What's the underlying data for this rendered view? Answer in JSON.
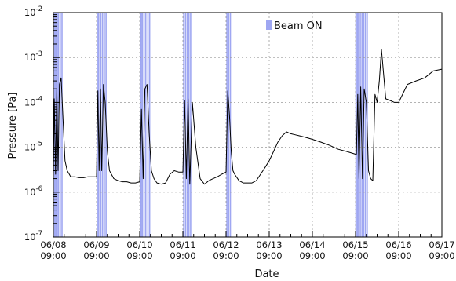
{
  "chart_data": {
    "type": "line",
    "title": "",
    "xlabel": "Date",
    "ylabel": "Pressure [Pa]",
    "y_scale": "log",
    "ylim": [
      1e-07,
      0.01
    ],
    "y_tick_labels": [
      {
        "mant": "10",
        "exp": "-7"
      },
      {
        "mant": "10",
        "exp": "-6"
      },
      {
        "mant": "10",
        "exp": "-5"
      },
      {
        "mant": "10",
        "exp": "-4"
      },
      {
        "mant": "10",
        "exp": "-3"
      },
      {
        "mant": "10",
        "exp": "-2"
      }
    ],
    "x_tick_labels": [
      [
        "06/08",
        "09:00"
      ],
      [
        "06/09",
        "09:00"
      ],
      [
        "06/10",
        "09:00"
      ],
      [
        "06/11",
        "09:00"
      ],
      [
        "06/12",
        "09:00"
      ],
      [
        "06/13",
        "09:00"
      ],
      [
        "06/14",
        "09:00"
      ],
      [
        "06/15",
        "09:00"
      ],
      [
        "06/16",
        "09:00"
      ],
      [
        "06/17",
        "09:00"
      ]
    ],
    "xlim_days": [
      0,
      9
    ],
    "grid": true,
    "legend": {
      "label": "Beam ON",
      "position": "top-center",
      "color": "#9fa7f2"
    },
    "line_color": "#000000",
    "series": [
      {
        "x_days": [
          0.0,
          0.02,
          0.05,
          0.08,
          0.11,
          0.14,
          0.18,
          0.22,
          0.27,
          0.32,
          0.37,
          0.4,
          0.5,
          0.6,
          0.7,
          0.8,
          0.9,
          1.0,
          1.03,
          1.06,
          1.09,
          1.12,
          1.16,
          1.2,
          1.25,
          1.3,
          1.4,
          1.5,
          1.6,
          1.7,
          1.8,
          1.9,
          2.0,
          2.04,
          2.08,
          2.12,
          2.17,
          2.22,
          2.27,
          2.33,
          2.4,
          2.5,
          2.6,
          2.7,
          2.8,
          2.9,
          3.0,
          3.04,
          3.08,
          3.12,
          3.16,
          3.22,
          3.3,
          3.4,
          3.5,
          3.6,
          3.7,
          3.8,
          3.9,
          4.0,
          4.04,
          4.08,
          4.12,
          4.16,
          4.2,
          4.3,
          4.4,
          4.5,
          4.6,
          4.7,
          4.8,
          4.9,
          5.0,
          5.1,
          5.2,
          5.3,
          5.4,
          5.5,
          5.6,
          5.7,
          5.8,
          5.9,
          6.0,
          6.2,
          6.4,
          6.6,
          6.8,
          7.0,
          7.02,
          7.05,
          7.08,
          7.12,
          7.16,
          7.2,
          7.25,
          7.3,
          7.35,
          7.4,
          7.45,
          7.5,
          7.55,
          7.6,
          7.7,
          7.8,
          7.9,
          8.0,
          8.2,
          8.4,
          8.6,
          8.8,
          9.0
        ],
        "y": [
          2.2e-06,
          0.00012,
          2.5e-06,
          0.0002,
          3e-06,
          0.00025,
          0.00035,
          5e-05,
          5e-06,
          3e-06,
          2.5e-06,
          2.2e-06,
          2.2e-06,
          2.1e-06,
          2.1e-06,
          2.2e-06,
          2.2e-06,
          2.2e-06,
          0.00018,
          3e-06,
          0.0002,
          3e-06,
          0.00025,
          0.0001,
          8e-06,
          3e-06,
          2e-06,
          1.8e-06,
          1.7e-06,
          1.7e-06,
          1.6e-06,
          1.6e-06,
          1.7e-06,
          7e-05,
          2e-06,
          0.0002,
          0.00025,
          2e-05,
          3e-06,
          2e-06,
          1.6e-06,
          1.5e-06,
          1.6e-06,
          2.5e-06,
          3e-06,
          2.8e-06,
          2.8e-06,
          0.00011,
          2e-06,
          0.00012,
          1.5e-06,
          0.0001,
          1e-05,
          2e-06,
          1.5e-06,
          1.8e-06,
          2e-06,
          2.2e-06,
          2.5e-06,
          2.8e-06,
          0.00018,
          5e-05,
          8e-06,
          3e-06,
          2.5e-06,
          1.8e-06,
          1.6e-06,
          1.6e-06,
          1.6e-06,
          1.8e-06,
          2.5e-06,
          3.5e-06,
          5e-06,
          8e-06,
          1.3e-05,
          1.8e-05,
          2.2e-05,
          2e-05,
          1.9e-05,
          1.8e-05,
          1.7e-05,
          1.6e-05,
          1.5e-05,
          1.3e-05,
          1.1e-05,
          9e-06,
          8e-06,
          7e-06,
          7e-06,
          0.00015,
          2e-06,
          0.00022,
          2e-06,
          0.0002,
          0.0001,
          3e-06,
          2e-06,
          1.8e-06,
          0.00015,
          0.0001,
          0.0003,
          0.0015,
          0.00012,
          0.00011,
          0.0001,
          0.0001,
          0.00025,
          0.0003,
          0.00035,
          0.0005,
          0.00055
        ]
      }
    ],
    "beam_on_days": [
      0.03,
      0.06,
      0.09,
      0.12,
      0.16,
      0.2,
      1.02,
      1.05,
      1.1,
      1.14,
      1.18,
      1.22,
      2.03,
      2.06,
      2.1,
      2.14,
      2.19,
      2.23,
      3.02,
      3.06,
      3.1,
      3.14,
      3.18,
      4.02,
      4.06,
      4.1,
      7.01,
      7.04,
      7.07,
      7.11,
      7.15,
      7.19,
      7.23,
      7.27
    ]
  }
}
